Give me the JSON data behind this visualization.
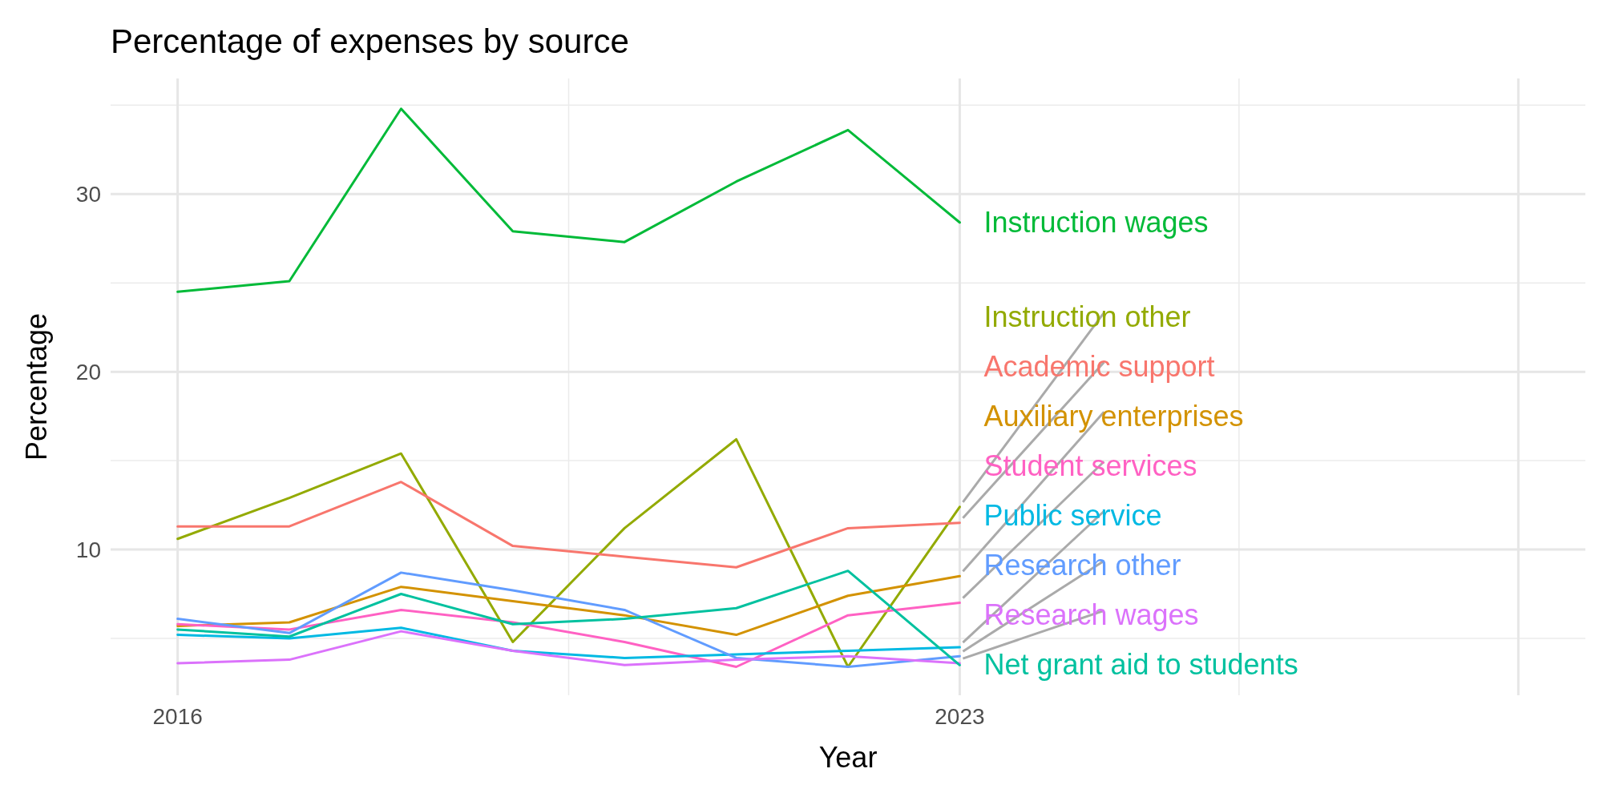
{
  "chart_data": {
    "type": "line",
    "title": "Percentage of expenses by source",
    "xlabel": "Year",
    "ylabel": "Percentage",
    "x": [
      2016,
      2017,
      2018,
      2019,
      2020,
      2021,
      2022,
      2023
    ],
    "xlim": [
      2015.4,
      2028.6
    ],
    "xticks": [
      2016,
      2023,
      {
        "value": 2028,
        "label": null
      }
    ],
    "ylim": [
      1.8,
      36.5
    ],
    "yticks": [
      10,
      20,
      30
    ],
    "grid": true,
    "legend": false,
    "marker": "none",
    "line_style": "solid",
    "series": [
      {
        "name": "Instruction wages",
        "color": "#00ba38",
        "values": [
          24.5,
          25.1,
          34.8,
          27.9,
          27.3,
          30.7,
          33.6,
          28.4
        ]
      },
      {
        "name": "Instruction other",
        "color": "#93aa00",
        "values": [
          10.6,
          12.9,
          15.4,
          4.8,
          11.2,
          16.2,
          3.4,
          12.4
        ]
      },
      {
        "name": "Academic support",
        "color": "#f8766d",
        "values": [
          11.3,
          11.3,
          13.8,
          10.2,
          9.6,
          9.0,
          11.2,
          11.5
        ]
      },
      {
        "name": "Auxiliary enterprises",
        "color": "#d39200",
        "values": [
          5.7,
          5.9,
          7.9,
          7.1,
          6.3,
          5.2,
          7.4,
          8.5
        ]
      },
      {
        "name": "Student services",
        "color": "#ff61c3",
        "values": [
          5.8,
          5.5,
          6.6,
          5.9,
          4.8,
          3.4,
          6.3,
          7.0
        ]
      },
      {
        "name": "Public service",
        "color": "#00b9e3",
        "values": [
          5.2,
          5.0,
          5.6,
          4.3,
          3.9,
          4.1,
          4.3,
          4.5
        ]
      },
      {
        "name": "Research other",
        "color": "#619cff",
        "values": [
          6.1,
          5.3,
          8.7,
          7.7,
          6.6,
          3.9,
          3.4,
          4.0
        ]
      },
      {
        "name": "Research wages",
        "color": "#db72fb",
        "values": [
          3.6,
          3.8,
          5.4,
          4.3,
          3.5,
          3.8,
          4.0,
          3.6
        ]
      },
      {
        "name": "Net grant aid to students",
        "color": "#00c19f",
        "values": [
          5.5,
          5.1,
          7.5,
          5.8,
          6.1,
          6.7,
          8.8,
          3.5
        ]
      }
    ]
  }
}
